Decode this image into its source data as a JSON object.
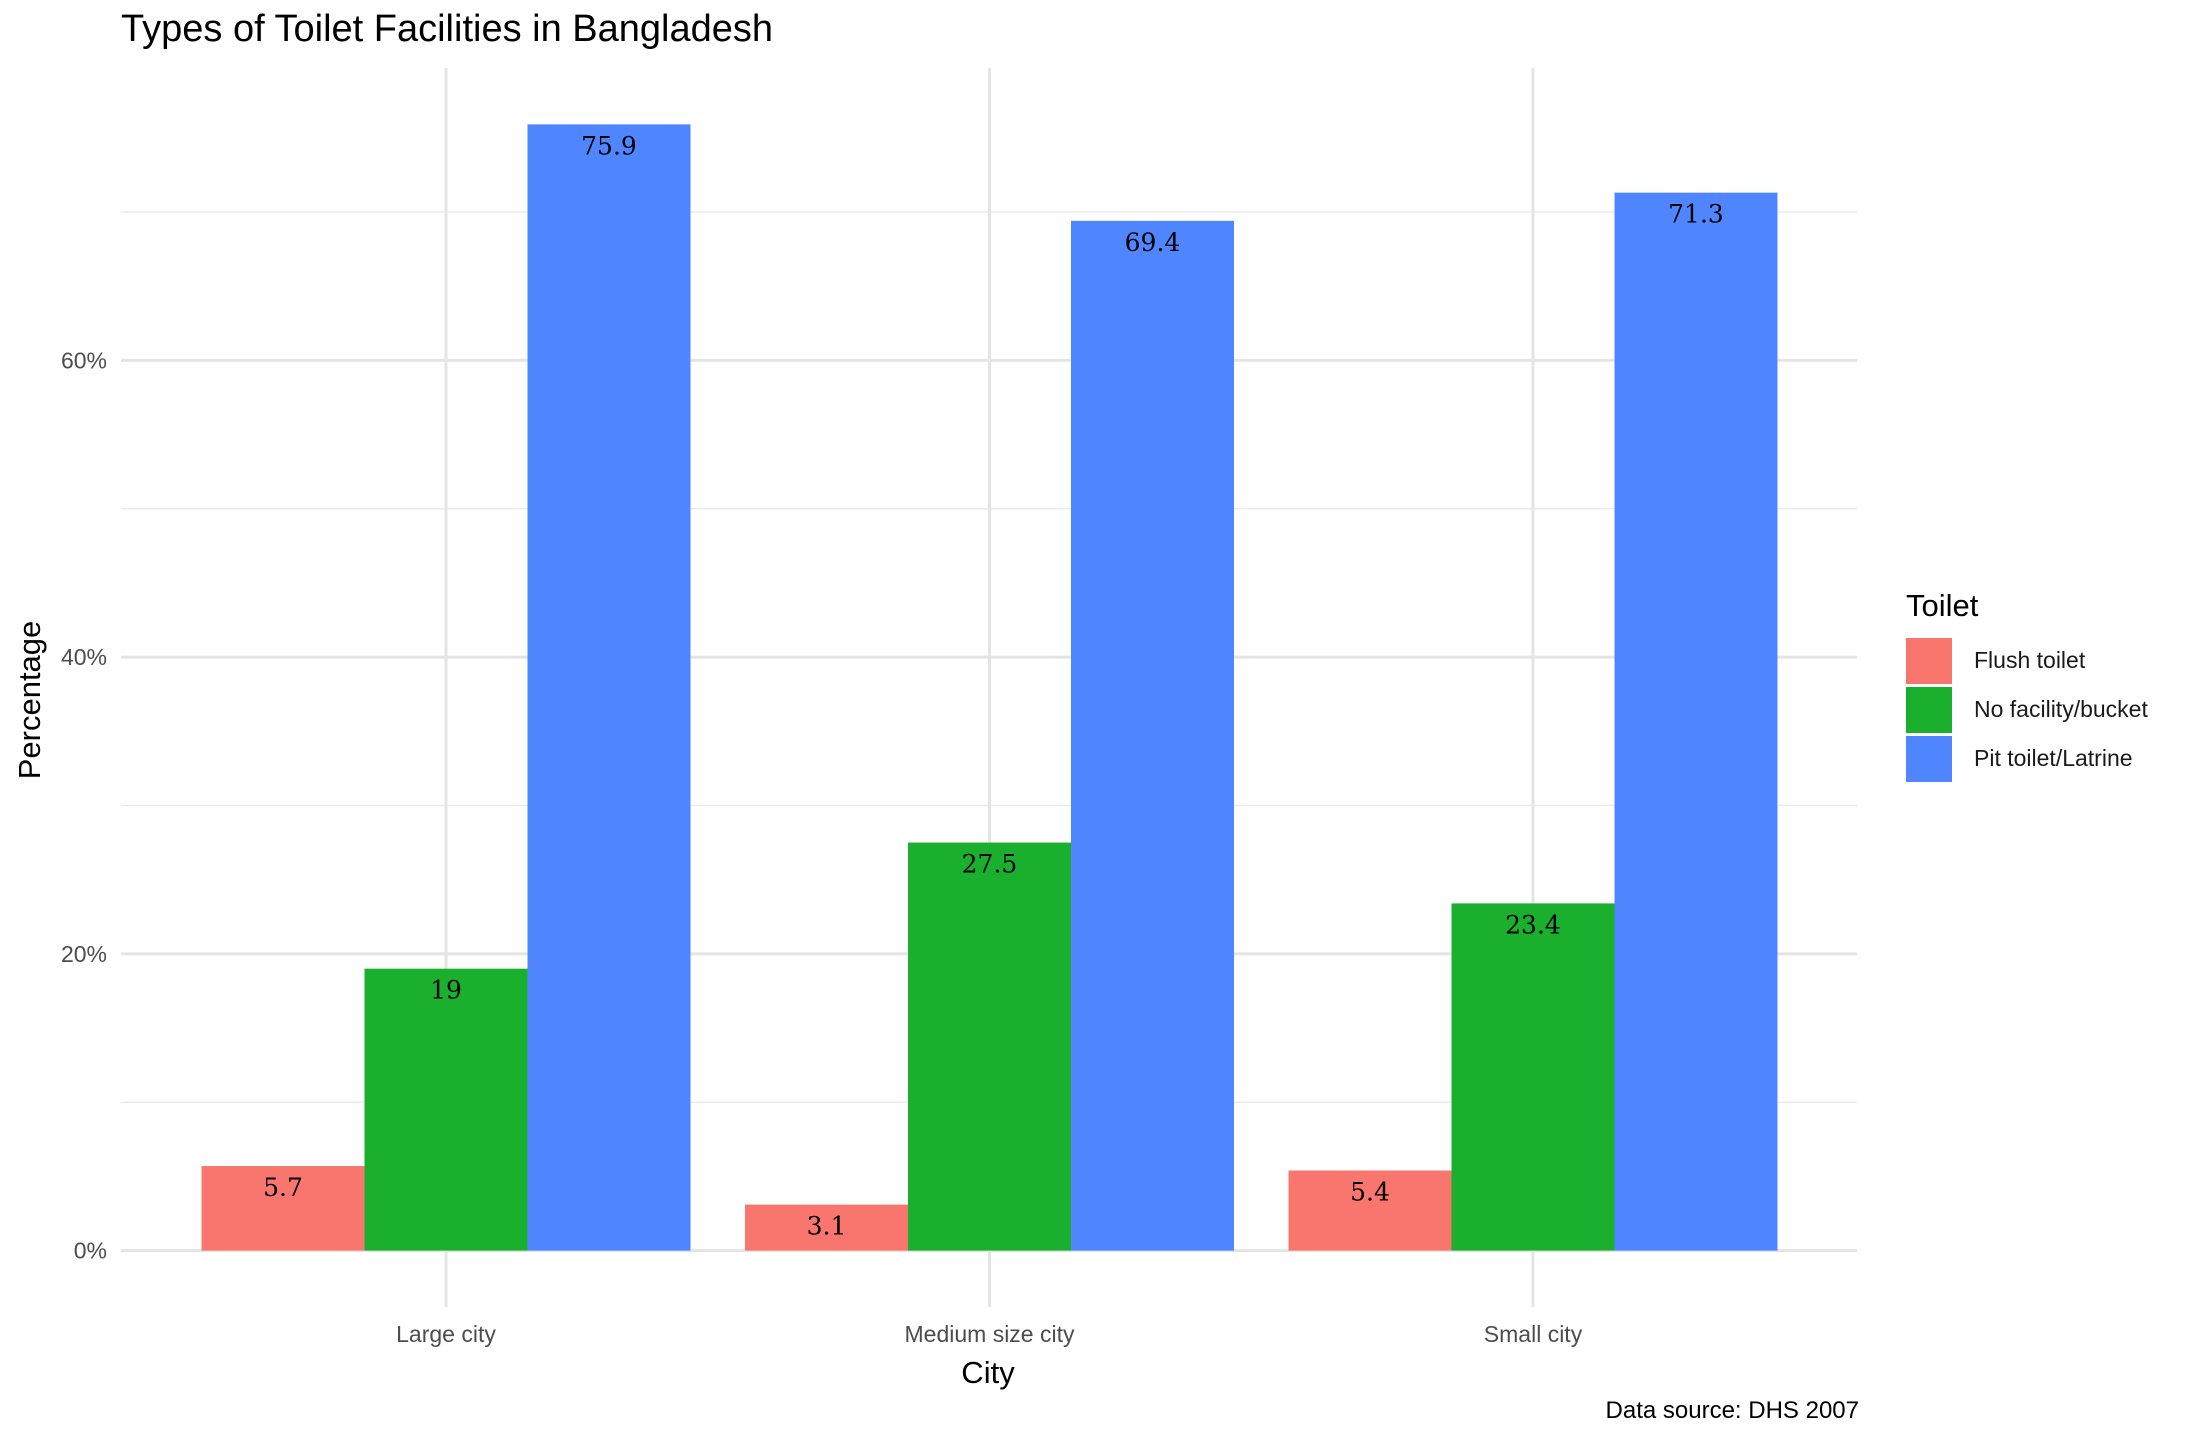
{
  "chart_data": {
    "type": "bar",
    "title": "Types of Toilet Facilities in Bangladesh",
    "caption": "Data source: DHS 2007",
    "xlabel": "City",
    "ylabel": "Percentage",
    "categories": [
      "Large city",
      "Medium size city",
      "Small city"
    ],
    "y_ticks": [
      "0%",
      "20%",
      "40%",
      "60%"
    ],
    "y_tick_values": [
      0,
      20,
      40,
      60
    ],
    "ylim": [
      -3.8,
      79.7
    ],
    "grid": true,
    "legend_title": "Toilet",
    "legend_position": "right",
    "series": [
      {
        "name": "Flush toilet",
        "color": "#F8766D",
        "values": [
          5.7,
          3.1,
          5.4
        ],
        "labels": [
          "5.7",
          "3.1",
          "5.4"
        ]
      },
      {
        "name": "No facility/bucket",
        "color": "#1AB02E",
        "values": [
          19,
          27.5,
          23.4
        ],
        "labels": [
          "19",
          "27.5",
          "23.4"
        ]
      },
      {
        "name": "Pit toilet/Latrine",
        "color": "#4F86FF",
        "values": [
          75.9,
          69.4,
          71.3
        ],
        "labels": [
          "75.9",
          "69.4",
          "71.3"
        ]
      }
    ]
  }
}
